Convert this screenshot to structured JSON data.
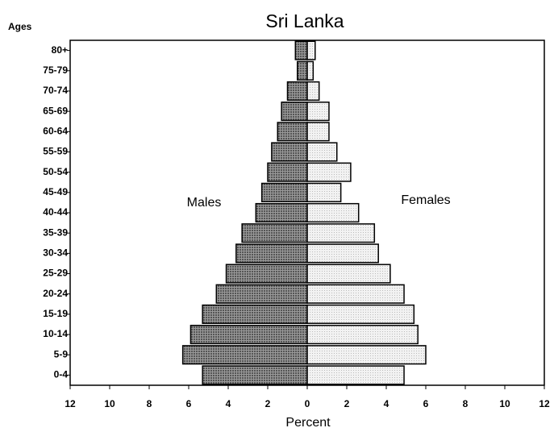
{
  "chart_data": {
    "type": "pyramid",
    "title": "Sri Lanka",
    "y_label": "Ages",
    "x_label": "Percent",
    "categories": [
      "0-4",
      "5-9",
      "10-14",
      "15-19",
      "20-24",
      "25-29",
      "30-34",
      "35-39",
      "40-44",
      "45-49",
      "50-54",
      "55-59",
      "60-64",
      "65-69",
      "70-74",
      "75-79",
      "80+"
    ],
    "series": [
      {
        "name": "Males",
        "color": "#555555",
        "values": [
          -5.3,
          -6.3,
          -5.9,
          -5.3,
          -4.6,
          -4.1,
          -3.6,
          -3.3,
          -2.6,
          -2.3,
          -2.0,
          -1.8,
          -1.5,
          -1.3,
          -1.0,
          -0.5,
          -0.6
        ]
      },
      {
        "name": "Females",
        "color": "#bbbbbb",
        "values": [
          4.9,
          6.0,
          5.6,
          5.4,
          4.9,
          4.2,
          3.6,
          3.4,
          2.6,
          1.7,
          2.2,
          1.5,
          1.1,
          1.1,
          0.6,
          0.3,
          0.4
        ]
      }
    ],
    "xlim": [
      -12,
      12
    ],
    "xticks": [
      {
        "value": -12,
        "label": "12"
      },
      {
        "value": -10,
        "label": "10"
      },
      {
        "value": -8,
        "label": "8"
      },
      {
        "value": -6,
        "label": "6"
      },
      {
        "value": -4,
        "label": "4"
      },
      {
        "value": -2,
        "label": "2"
      },
      0,
      2,
      4,
      6,
      8,
      10,
      12
    ]
  }
}
